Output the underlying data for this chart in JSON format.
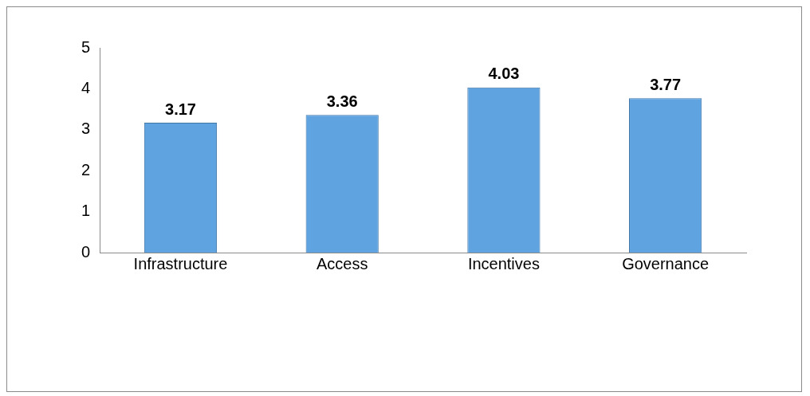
{
  "chart_data": {
    "type": "bar",
    "categories": [
      "Infrastructure",
      "Access",
      "Incentives",
      "Governance"
    ],
    "values": [
      3.17,
      3.36,
      4.03,
      3.77
    ],
    "color": "#5fa3e0",
    "ylim": [
      0,
      5
    ],
    "yticks": [
      0,
      1,
      2,
      3,
      4,
      5
    ],
    "grid": false,
    "legend": false,
    "data_labels": true
  }
}
